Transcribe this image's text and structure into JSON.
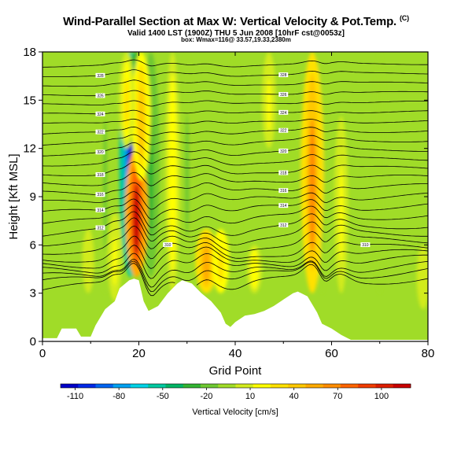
{
  "chart_data": {
    "type": "heatmap",
    "title": "Wind-Parallel Section at Max W: Vertical Velocity & Pot.Temp.",
    "title_mark": "(C)",
    "valid_line": "Valid 1400 LST (1900Z) THU 5 Jun 2008 [10hrF cst@0053z]",
    "box_line": "box: Wmax=116@ 33.57,19.33,2380m",
    "xlabel": "Grid Point",
    "ylabel": "Height [Kft MSL]",
    "xlim": [
      0,
      80
    ],
    "ylim": [
      0,
      18
    ],
    "x_ticks": [
      0,
      20,
      40,
      60,
      80
    ],
    "y_ticks": [
      0,
      3,
      6,
      9,
      12,
      15,
      18
    ],
    "colorbar": {
      "title": "Vertical Velocity [cm/s]",
      "range": [
        -120,
        120
      ],
      "tick_values": [
        -110,
        -80,
        -50,
        -20,
        10,
        40,
        70,
        100
      ],
      "colors": [
        "#0000c8",
        "#0028e6",
        "#0064f0",
        "#00a0f0",
        "#00d2e6",
        "#00c8a0",
        "#00b464",
        "#32b432",
        "#6ec832",
        "#a0dc28",
        "#d2eb1e",
        "#ffff00",
        "#ffe100",
        "#ffc800",
        "#ffaa00",
        "#ff8c00",
        "#ff6400",
        "#f03c00",
        "#dc1e00",
        "#c80000"
      ]
    },
    "background_color": "#a0dc28",
    "updrafts": [
      {
        "x": 9.5,
        "y_range": [
          3,
          7
        ],
        "peak_cm_s": 5
      },
      {
        "x": 15,
        "y_range": [
          2.5,
          8
        ],
        "peak_cm_s": 15
      },
      {
        "x": 19.5,
        "y_range": [
          4,
          12
        ],
        "peak_cm_s": 110
      },
      {
        "x": 20.5,
        "y_range": [
          10,
          18
        ],
        "peak_cm_s": 40
      },
      {
        "x": 17.5,
        "y_range": [
          12,
          18
        ],
        "peak_cm_s": 25
      },
      {
        "x": 27,
        "y_range": [
          3,
          18
        ],
        "peak_cm_s": 20
      },
      {
        "x": 34,
        "y_range": [
          3,
          7
        ],
        "peak_cm_s": 55
      },
      {
        "x": 37,
        "y_range": [
          3,
          7
        ],
        "peak_cm_s": 30
      },
      {
        "x": 44,
        "y_range": [
          3,
          6
        ],
        "peak_cm_s": 20
      },
      {
        "x": 56,
        "y_range": [
          3,
          18
        ],
        "peak_cm_s": 60
      },
      {
        "x": 47,
        "y_range": [
          12,
          18
        ],
        "peak_cm_s": 15
      },
      {
        "x": 62,
        "y_range": [
          3,
          14
        ],
        "peak_cm_s": 15
      },
      {
        "x": 79,
        "y_range": [
          2,
          6
        ],
        "peak_cm_s": 10
      }
    ],
    "downdrafts": [
      {
        "x": 18.3,
        "y_range": [
          4,
          18
        ],
        "peak_cm_s": -110
      },
      {
        "x": 19.5,
        "y_range": [
          12,
          18
        ],
        "peak_cm_s": -60
      },
      {
        "x": 22.5,
        "y_range": [
          4,
          18
        ],
        "peak_cm_s": -30
      },
      {
        "x": 13,
        "y_range": [
          3,
          18
        ],
        "peak_cm_s": -15
      },
      {
        "x": 30,
        "y_range": [
          4,
          18
        ],
        "peak_cm_s": -15
      },
      {
        "x": 40,
        "y_range": [
          3,
          18
        ],
        "peak_cm_s": -10
      },
      {
        "x": 58,
        "y_range": [
          3,
          18
        ],
        "peak_cm_s": -15
      },
      {
        "x": 52,
        "y_range": [
          5,
          18
        ],
        "peak_cm_s": -10
      },
      {
        "x": 70,
        "y_range": [
          3,
          18
        ],
        "peak_cm_s": -10
      }
    ],
    "terrain_kft": [
      [
        0,
        0.2
      ],
      [
        3,
        0.2
      ],
      [
        4,
        0.8
      ],
      [
        7,
        0.8
      ],
      [
        8,
        0.3
      ],
      [
        10,
        0.3
      ],
      [
        11,
        1.0
      ],
      [
        13,
        2.0
      ],
      [
        15,
        2.5
      ],
      [
        16,
        3.3
      ],
      [
        18,
        3.8
      ],
      [
        19,
        3.9
      ],
      [
        20,
        3.8
      ],
      [
        21,
        2.5
      ],
      [
        22,
        1.9
      ],
      [
        24,
        2.2
      ],
      [
        26,
        3.0
      ],
      [
        28,
        3.6
      ],
      [
        29,
        3.8
      ],
      [
        31,
        3.6
      ],
      [
        33,
        3.0
      ],
      [
        35,
        2.5
      ],
      [
        37,
        1.8
      ],
      [
        38,
        1.1
      ],
      [
        39,
        0.9
      ],
      [
        40,
        1.2
      ],
      [
        42,
        1.6
      ],
      [
        44,
        1.7
      ],
      [
        46,
        1.9
      ],
      [
        48,
        2.2
      ],
      [
        50,
        2.6
      ],
      [
        52,
        3.0
      ],
      [
        53,
        3.1
      ],
      [
        55,
        2.8
      ],
      [
        56,
        2.3
      ],
      [
        57,
        1.8
      ],
      [
        58,
        1.1
      ],
      [
        60,
        0.8
      ],
      [
        62,
        0.4
      ],
      [
        64,
        0.1
      ],
      [
        70,
        0.1
      ],
      [
        80,
        0.1
      ]
    ],
    "theta_contours": [
      {
        "label": "",
        "base_kft": 3.6
      },
      {
        "label": "",
        "base_kft": 4.0
      },
      {
        "label": "",
        "base_kft": 4.3
      },
      {
        "label": "",
        "base_kft": 4.7
      },
      {
        "label": "",
        "base_kft": 5.1
      },
      {
        "label": "310",
        "base_kft": 5.5
      },
      {
        "label": "",
        "base_kft": 6.0
      },
      {
        "label": "",
        "base_kft": 6.5
      },
      {
        "label": "312",
        "base_kft": 7.0
      },
      {
        "label": "",
        "base_kft": 7.6
      },
      {
        "label": "314",
        "base_kft": 8.2
      },
      {
        "label": "",
        "base_kft": 8.8
      },
      {
        "label": "316",
        "base_kft": 9.4
      },
      {
        "label": "",
        "base_kft": 10.0
      },
      {
        "label": "318",
        "base_kft": 10.6
      },
      {
        "label": "",
        "base_kft": 11.2
      },
      {
        "label": "320",
        "base_kft": 11.8
      },
      {
        "label": "",
        "base_kft": 12.4
      },
      {
        "label": "322",
        "base_kft": 13.0
      },
      {
        "label": "",
        "base_kft": 13.6
      },
      {
        "label": "324",
        "base_kft": 14.2
      },
      {
        "label": "",
        "base_kft": 14.8
      },
      {
        "label": "326",
        "base_kft": 15.4
      },
      {
        "label": "",
        "base_kft": 16.0
      },
      {
        "label": "328",
        "base_kft": 16.6
      },
      {
        "label": "",
        "base_kft": 17.2
      }
    ]
  }
}
